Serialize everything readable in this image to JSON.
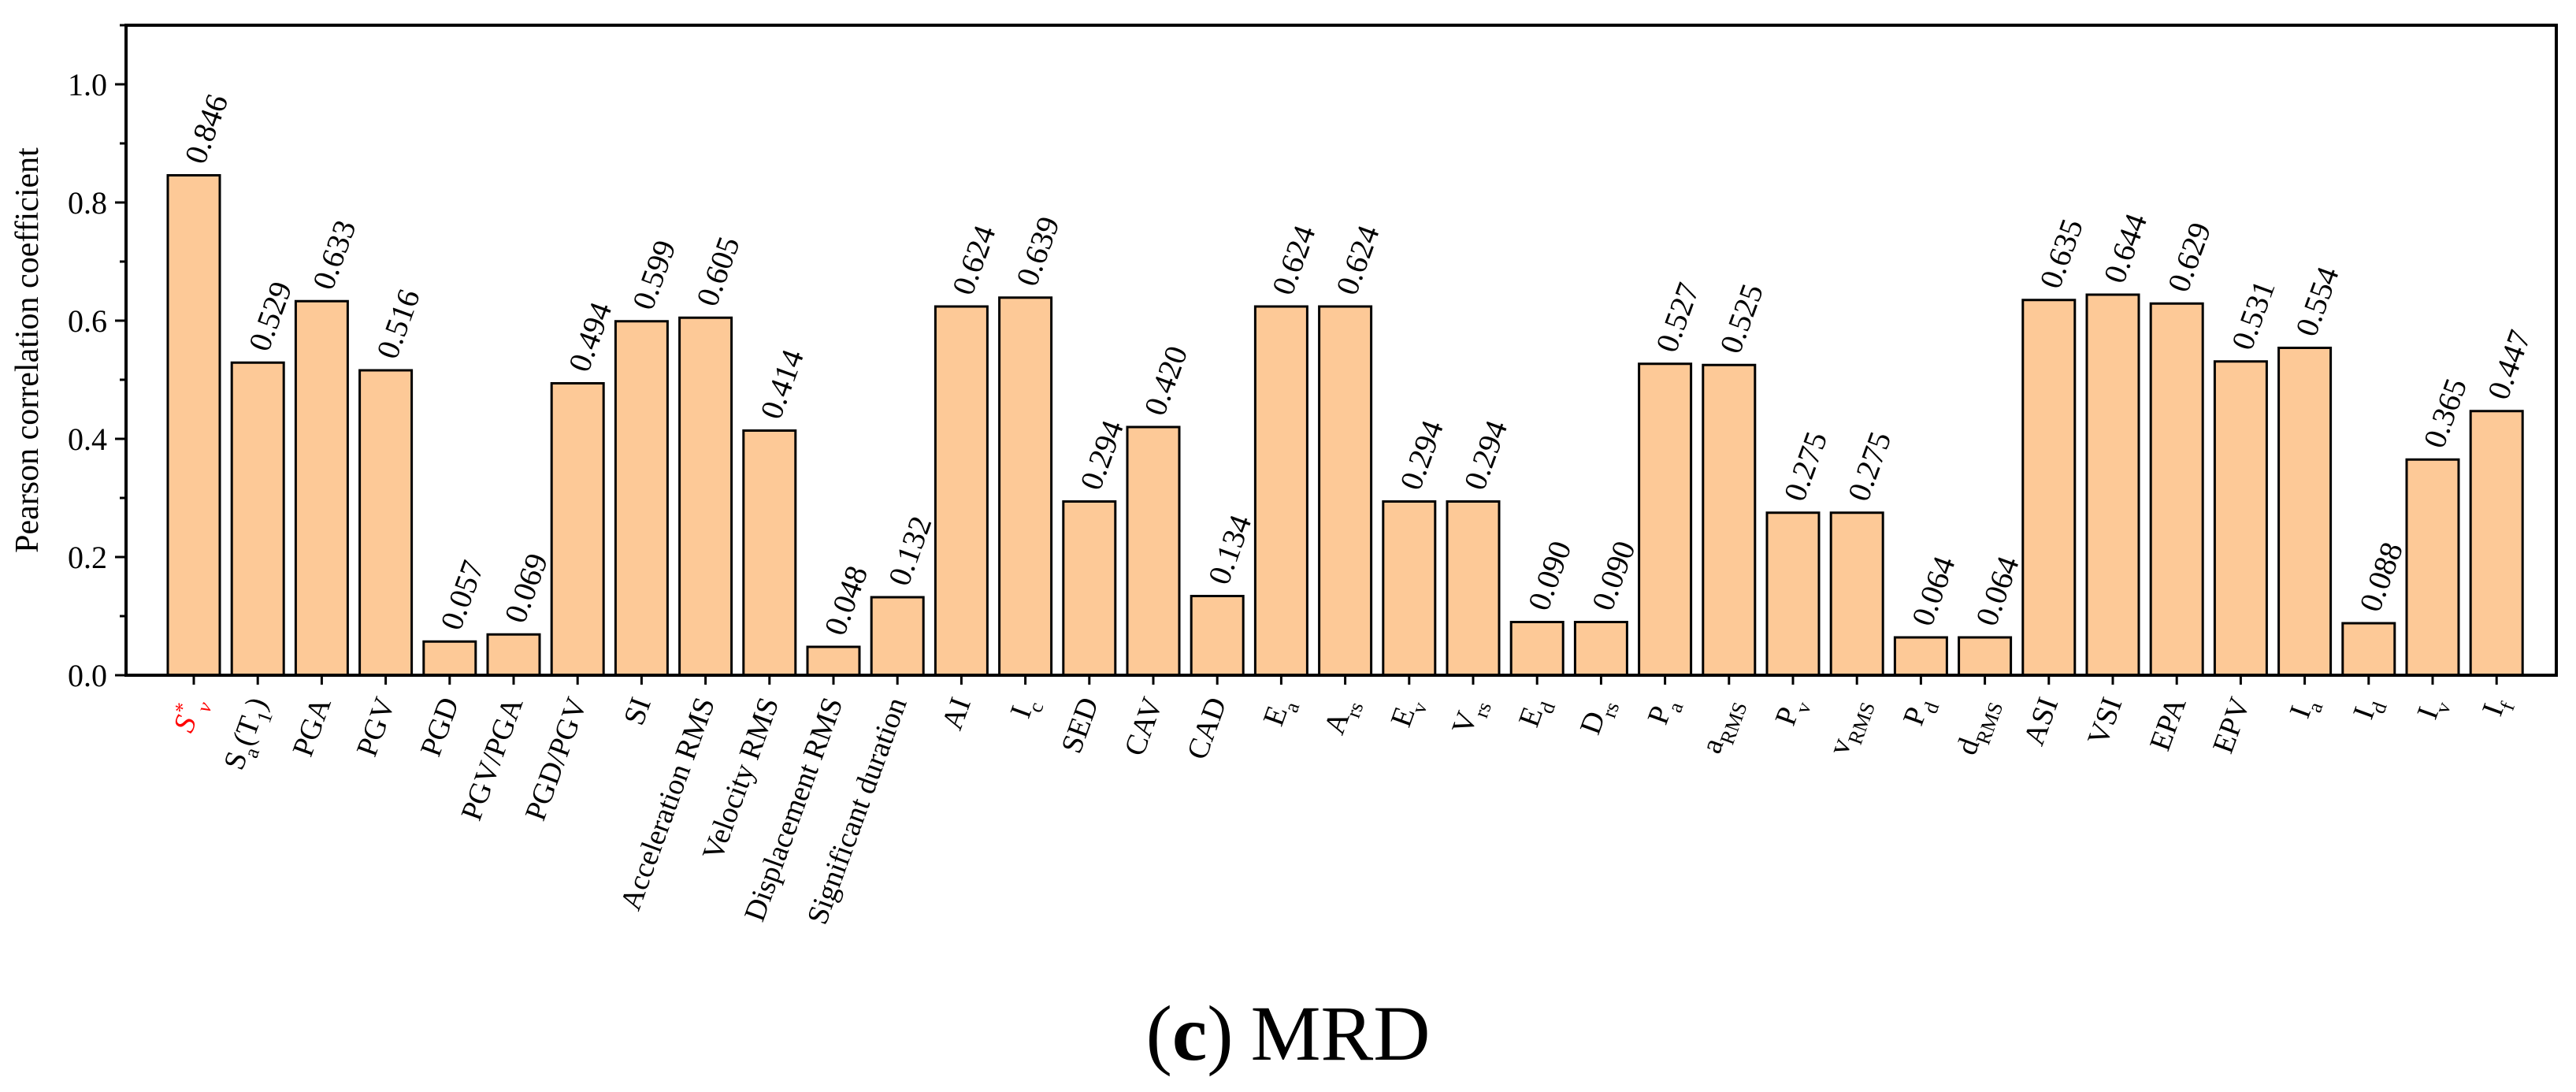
{
  "chart_data": {
    "type": "bar",
    "ylabel": "Pearson correlation coefficient",
    "xlabel": "",
    "ylim": [
      0,
      1.1
    ],
    "yticks": [
      "0.0",
      "0.2",
      "0.4",
      "0.6",
      "0.8",
      "1.0"
    ],
    "ytick_values": [
      0,
      0.2,
      0.4,
      0.6,
      0.8,
      1.0
    ],
    "bar_color": "#FDC997",
    "highlight_color": "#FF0000",
    "caption": {
      "open": "(",
      "letter": "c",
      "close": ")",
      "text": "MRD"
    },
    "bars": [
      {
        "main": "S",
        "sup": "*",
        "sub": "v",
        "highlight": true,
        "label": "0.846",
        "value": 0.846
      },
      {
        "main": "S",
        "sub": "a",
        "post": "(T",
        "sub2": "1",
        "post2": ")",
        "label": "0.529",
        "value": 0.529
      },
      {
        "main": "PGA",
        "label": "0.633",
        "value": 0.633
      },
      {
        "main": "PGV",
        "label": "0.516",
        "value": 0.516
      },
      {
        "main": "PGD",
        "label": "0.057",
        "value": 0.057
      },
      {
        "main": "PGV/PGA",
        "label": "0.069",
        "value": 0.069
      },
      {
        "main": "PGD/PGV",
        "label": "0.494",
        "value": 0.494
      },
      {
        "main": "SI",
        "label": "0.599",
        "value": 0.599
      },
      {
        "main": "Acceleration RMS",
        "label": "0.605",
        "value": 0.605
      },
      {
        "main": "Velocity RMS",
        "label": "0.414",
        "value": 0.414
      },
      {
        "main": "Displacement RMS",
        "label": "0.048",
        "value": 0.048
      },
      {
        "main": "Significant duration",
        "label": "0.132",
        "value": 0.132
      },
      {
        "main": "AI",
        "label": "0.624",
        "value": 0.624
      },
      {
        "main": "I",
        "sub": "c",
        "label": "0.639",
        "value": 0.639
      },
      {
        "main": "SED",
        "label": "0.294",
        "value": 0.294
      },
      {
        "main": "CAV",
        "label": "0.420",
        "value": 0.42
      },
      {
        "main": "CAD",
        "label": "0.134",
        "value": 0.134
      },
      {
        "main": "E",
        "sub": "a",
        "label": "0.624",
        "value": 0.624
      },
      {
        "main": "A",
        "sub": "rs",
        "label": "0.624",
        "value": 0.624
      },
      {
        "main": "E",
        "sub": "v",
        "label": "0.294",
        "value": 0.294
      },
      {
        "main": "V",
        "sub": "rs",
        "label": "0.294",
        "value": 0.294
      },
      {
        "main": "E",
        "sub": "d",
        "label": "0.090",
        "value": 0.09
      },
      {
        "main": "D",
        "sub": "rs",
        "label": "0.090",
        "value": 0.09
      },
      {
        "main": "P",
        "sub": "a",
        "label": "0.527",
        "value": 0.527
      },
      {
        "main": "a",
        "sub": "RMS",
        "label": "0.525",
        "value": 0.525
      },
      {
        "main": "P",
        "sub": "v",
        "label": "0.275",
        "value": 0.275
      },
      {
        "main": "v",
        "sub": "RMS",
        "label": "0.275",
        "value": 0.275
      },
      {
        "main": "P",
        "sub": "d",
        "label": "0.064",
        "value": 0.064
      },
      {
        "main": "d",
        "sub": "RMS",
        "label": "0.064",
        "value": 0.064
      },
      {
        "main": "ASI",
        "label": "0.635",
        "value": 0.635
      },
      {
        "main": "VSI",
        "label": "0.644",
        "value": 0.644
      },
      {
        "main": "EPA",
        "label": "0.629",
        "value": 0.629
      },
      {
        "main": "EPV",
        "label": "0.531",
        "value": 0.531
      },
      {
        "main": "I",
        "sub": "a",
        "label": "0.554",
        "value": 0.554
      },
      {
        "main": "I",
        "sub": "d",
        "label": "0.088",
        "value": 0.088
      },
      {
        "main": "I",
        "sub": "v",
        "label": "0.365",
        "value": 0.365
      },
      {
        "main": "I",
        "sub": "f",
        "label": "0.447",
        "value": 0.447
      }
    ]
  }
}
